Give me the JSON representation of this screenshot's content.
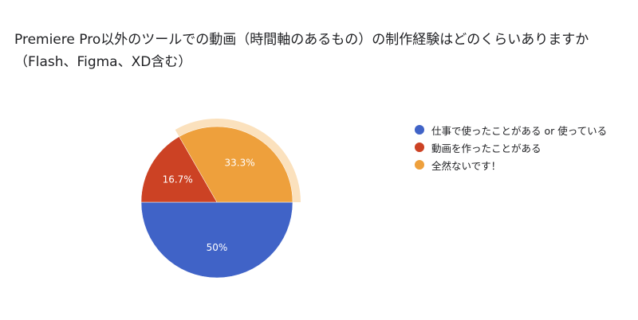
{
  "chart_data": {
    "type": "pie",
    "title": "Premiere Pro以外のツールでの動画（時間軸のあるもの）の制作経験はどのくらいありますか（Flash、Figma、XD含む）",
    "slices": [
      {
        "label": "仕事で使ったことがある or 使っている",
        "value": 50.0,
        "display": "50%",
        "color": "#4063c7"
      },
      {
        "label": "動画を作ったことがある",
        "value": 16.7,
        "display": "16.7%",
        "color": "#cc4224"
      },
      {
        "label": "全然ないです！",
        "value": 33.3,
        "display": "33.3%",
        "color": "#eea03c"
      }
    ],
    "highlight_color": "#fbe1bd",
    "highlighted_slice": 2,
    "legend_position": "right"
  }
}
